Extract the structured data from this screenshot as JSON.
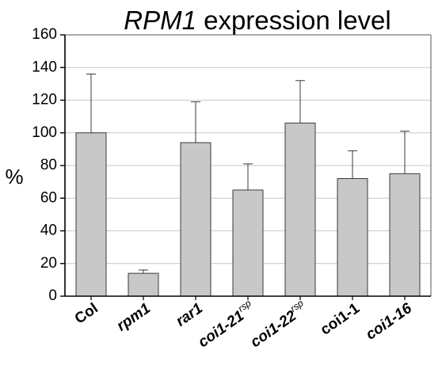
{
  "chart_data": {
    "type": "bar",
    "title_italic": "RPM1",
    "title_rest": " expression level",
    "xlabel": "",
    "ylabel": "%",
    "ylim": [
      0,
      160
    ],
    "yticks": [
      0,
      20,
      40,
      60,
      80,
      100,
      120,
      140,
      160
    ],
    "grid": true,
    "categories": [
      {
        "base": "Col",
        "sup": "",
        "italic": false
      },
      {
        "base": "rpm1",
        "sup": "",
        "italic": true
      },
      {
        "base": "rar1",
        "sup": "",
        "italic": true
      },
      {
        "base": "coi1-21",
        "sup": "rsp",
        "italic": true
      },
      {
        "base": "coi1-22",
        "sup": "rsp",
        "italic": true
      },
      {
        "base": "coi1-1",
        "sup": "",
        "italic": false
      },
      {
        "base": "coi1-16",
        "sup": "",
        "italic": true
      }
    ],
    "values": [
      100,
      14,
      94,
      65,
      106,
      72,
      75
    ],
    "error_upper": [
      36,
      2,
      25,
      16,
      26,
      17,
      26
    ],
    "bar_color": "#c8c8c8",
    "grid_color": "#c8c8c8"
  }
}
